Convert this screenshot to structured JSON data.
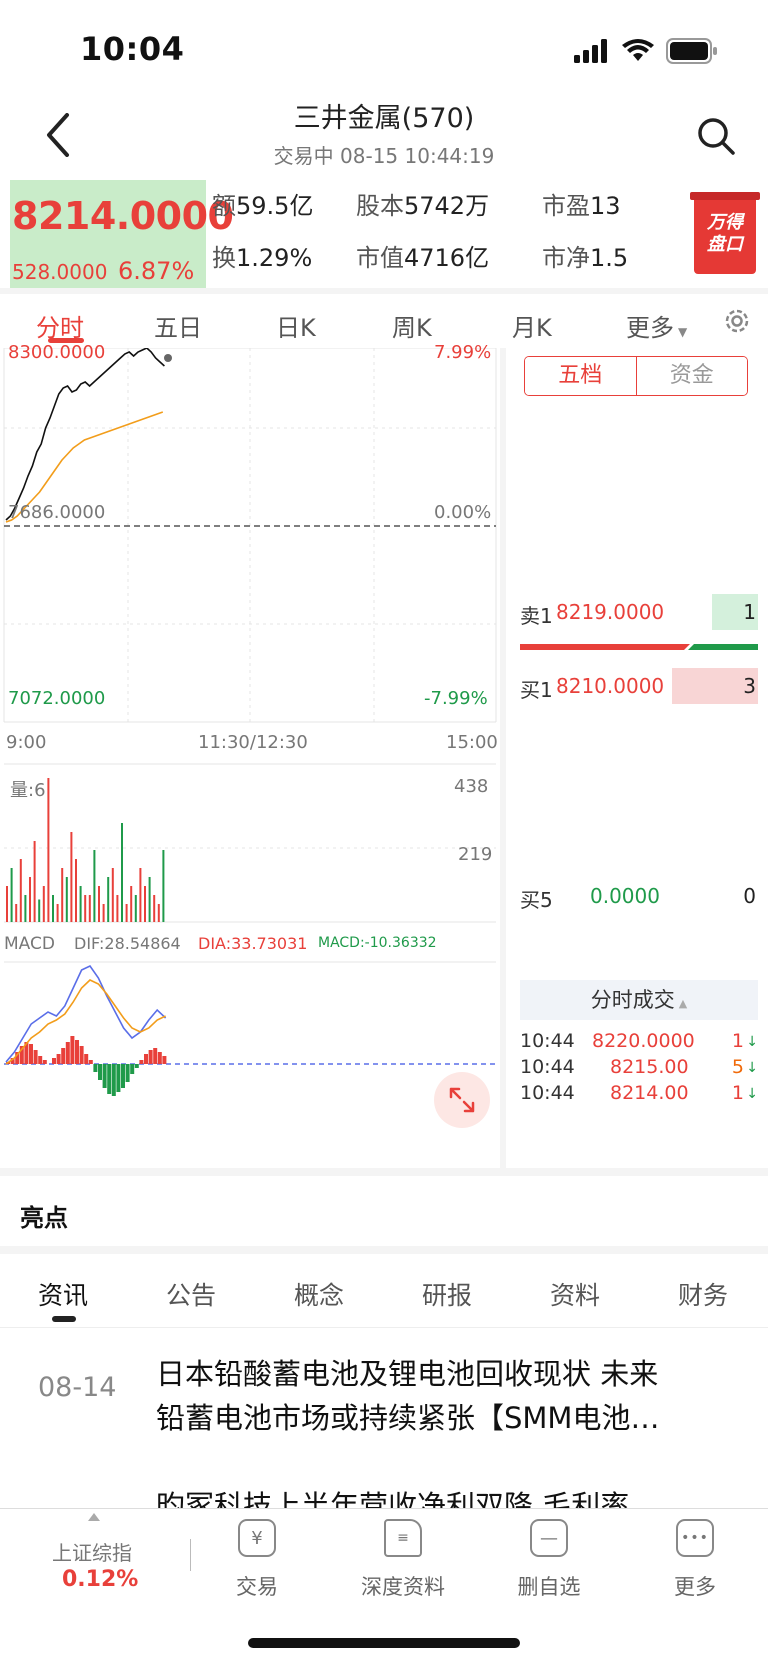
{
  "status": {
    "time": "10:04"
  },
  "nav": {
    "title": "三井金属(570)",
    "subtitle": "交易中 08-15 10:44:19"
  },
  "quote": {
    "price": "8214.0000",
    "change": "528.0000",
    "change_pct": "6.87%",
    "amount_label": "额",
    "amount": "59.5亿",
    "share_cap_label": "股本",
    "share_cap": "5742万",
    "pe_label": "市盈",
    "pe": "13",
    "turnover_label": "换",
    "turnover": "1.29%",
    "mkt_cap_label": "市值",
    "mkt_cap": "4716亿",
    "pb_label": "市净",
    "pb": "1.5",
    "badge": "万得盘口"
  },
  "period_tabs": [
    "分时",
    "五日",
    "日K",
    "周K",
    "月K",
    "更多"
  ],
  "chart": {
    "price_high": "8300.0000",
    "pct_high": "7.99%",
    "price_mid": "7686.0000",
    "pct_mid": "0.00%",
    "price_low": "7072.0000",
    "pct_low": "-7.99%",
    "time_start": "9:00",
    "time_mid": "11:30/12:30",
    "time_end": "15:00",
    "vol_label": "量:6",
    "vol_high": "438",
    "vol_mid": "219",
    "macd_label": "MACD",
    "dif": "DIF:28.54864",
    "dea": "DIA:33.73031",
    "macd": "MACD:-10.36332",
    "colors": {
      "price_line": "#111111",
      "avg_line": "#f29d1b",
      "up": "#e8403a",
      "down": "#1f9a4a",
      "dif_line": "#5a6ee8",
      "dea_line": "#f29d1b"
    }
  },
  "order_book": {
    "tab_on": "五档",
    "tab_off": "资金",
    "sell1_label": "卖1",
    "sell1_price": "8219.0000",
    "sell1_vol": "1",
    "buy1_label": "买1",
    "buy1_price": "8210.0000",
    "buy1_vol": "3",
    "buy5_label": "买5",
    "buy5_price": "0.0000",
    "buy5_vol": "0"
  },
  "ticks": {
    "title": "分时成交",
    "rows": [
      {
        "time": "10:44",
        "price": "8220.0000",
        "vol": "1"
      },
      {
        "time": "10:44",
        "price": "8215.00",
        "vol": "5"
      },
      {
        "time": "10:44",
        "price": "8214.00",
        "vol": "1"
      }
    ]
  },
  "highlight": {
    "title": "亮点"
  },
  "info_tabs": [
    "资讯",
    "公告",
    "概念",
    "研报",
    "资料",
    "财务"
  ],
  "news": [
    {
      "date": "08-14",
      "title_line1": "日本铅酸蓄电池及锂电池回收现状 未来",
      "title_line2": "铅蓄电池市场或持续紧张【SMM电池…"
    },
    {
      "date": "",
      "title_line1": "昀冢科技上半年营收净利双降 毛利率"
    }
  ],
  "bottom_bar": {
    "index_name": "上证综指",
    "index_value": "0.12%",
    "items": [
      {
        "label": "交易",
        "icon": "yuan-icon"
      },
      {
        "label": "深度资料",
        "icon": "document-icon"
      },
      {
        "label": "删自选",
        "icon": "minus-icon"
      },
      {
        "label": "更多",
        "icon": "more-icon"
      }
    ]
  }
}
